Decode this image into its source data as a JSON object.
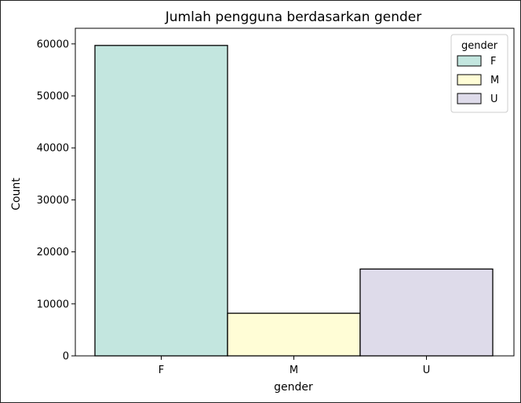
{
  "chart_data": {
    "type": "bar",
    "title": "Jumlah pengguna berdasarkan gender",
    "xlabel": "gender",
    "ylabel": "Count",
    "categories": [
      "F",
      "M",
      "U"
    ],
    "values": [
      59700,
      8200,
      16700
    ],
    "colors": [
      "#c3e6df",
      "#fffdd6",
      "#dedbea"
    ],
    "ylim": [
      0,
      63000
    ],
    "yticks": [
      0,
      10000,
      20000,
      30000,
      40000,
      50000,
      60000
    ],
    "ytick_labels": [
      "0",
      "10000",
      "20000",
      "30000",
      "40000",
      "50000",
      "60000"
    ],
    "grid": false,
    "legend": {
      "title": "gender",
      "placement": "top-right",
      "entries": [
        "F",
        "M",
        "U"
      ]
    }
  }
}
